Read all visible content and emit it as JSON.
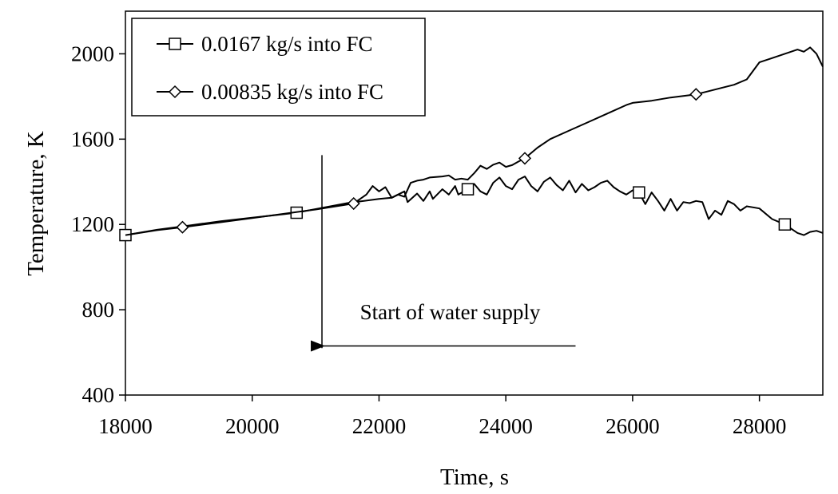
{
  "chart_data": {
    "type": "line",
    "title": "",
    "xlabel": "Time, s",
    "ylabel": "Temperature, K",
    "xlim": [
      18000,
      29000
    ],
    "ylim": [
      400,
      2200
    ],
    "xticks": [
      18000,
      20000,
      22000,
      24000,
      26000,
      28000
    ],
    "yticks": [
      400,
      800,
      1200,
      1600,
      2000
    ],
    "xtick_labels": [
      "18000",
      "20000",
      "22000",
      "24000",
      "26000",
      "28000"
    ],
    "ytick_labels": [
      "400",
      "800",
      "1200",
      "1600",
      "2000"
    ],
    "grid": false,
    "legend_position": "top-left",
    "series": [
      {
        "name": "0.0167 kg/s into FC",
        "marker": "square",
        "color": "#000000",
        "x": [
          18000,
          18500,
          19000,
          19500,
          20000,
          20500,
          20700,
          21000,
          21500,
          22000,
          22200,
          22400,
          22450,
          22600,
          22700,
          22800,
          22850,
          23000,
          23100,
          23200,
          23250,
          23400,
          23500,
          23600,
          23700,
          23800,
          23900,
          24000,
          24100,
          24200,
          24300,
          24400,
          24500,
          24600,
          24700,
          24800,
          24900,
          25000,
          25100,
          25200,
          25300,
          25400,
          25500,
          25600,
          25700,
          25800,
          25900,
          26000,
          26100,
          26200,
          26300,
          26400,
          26500,
          26600,
          26700,
          26800,
          26900,
          27000,
          27100,
          27200,
          27300,
          27400,
          27500,
          27600,
          27700,
          27800,
          27900,
          28000,
          28200,
          28400,
          28600,
          28700,
          28800,
          28900,
          29000
        ],
        "y": [
          1150,
          1175,
          1195,
          1215,
          1232,
          1248,
          1255,
          1272,
          1300,
          1320,
          1325,
          1355,
          1305,
          1345,
          1310,
          1355,
          1320,
          1365,
          1340,
          1380,
          1340,
          1365,
          1390,
          1355,
          1340,
          1395,
          1420,
          1380,
          1365,
          1410,
          1425,
          1380,
          1355,
          1400,
          1420,
          1385,
          1360,
          1405,
          1350,
          1390,
          1360,
          1375,
          1395,
          1405,
          1375,
          1355,
          1340,
          1360,
          1350,
          1295,
          1350,
          1310,
          1265,
          1320,
          1265,
          1305,
          1300,
          1310,
          1305,
          1225,
          1265,
          1245,
          1310,
          1295,
          1265,
          1285,
          1280,
          1275,
          1225,
          1200,
          1160,
          1150,
          1165,
          1170,
          1160
        ],
        "markers_at_x": [
          18000,
          20700,
          23400,
          26100,
          28400
        ]
      },
      {
        "name": "0.00835 kg/s into FC",
        "marker": "diamond",
        "color": "#000000",
        "x": [
          18000,
          18500,
          18900,
          19500,
          20000,
          20500,
          21000,
          21600,
          21800,
          21900,
          22000,
          22100,
          22200,
          22300,
          22400,
          22500,
          22600,
          22700,
          22800,
          23000,
          23100,
          23200,
          23300,
          23400,
          23500,
          23600,
          23700,
          23800,
          23900,
          24000,
          24100,
          24200,
          24300,
          24500,
          24700,
          25000,
          25300,
          25600,
          25900,
          26000,
          26300,
          26600,
          27000,
          27400,
          27600,
          27800,
          28000,
          28200,
          28400,
          28600,
          28700,
          28800,
          28900,
          29000
        ],
        "y": [
          1150,
          1173,
          1187,
          1210,
          1230,
          1250,
          1270,
          1298,
          1340,
          1380,
          1355,
          1375,
          1325,
          1340,
          1330,
          1395,
          1405,
          1410,
          1420,
          1425,
          1430,
          1410,
          1415,
          1410,
          1440,
          1475,
          1460,
          1480,
          1490,
          1470,
          1478,
          1495,
          1510,
          1560,
          1600,
          1640,
          1680,
          1720,
          1760,
          1770,
          1780,
          1795,
          1810,
          1840,
          1855,
          1880,
          1960,
          1980,
          2000,
          2020,
          2010,
          2030,
          2000,
          1940
        ],
        "markers_at_x": [
          18900,
          21600,
          24300,
          27000
        ]
      }
    ],
    "annotations": [
      {
        "text": "Start of water supply",
        "vline_x": 21100,
        "vline_y_range": [
          620,
          1525
        ],
        "arrow_from": [
          25100,
          630
        ],
        "arrow_to": [
          21100,
          630
        ],
        "text_anchor": [
          21700,
          755
        ]
      }
    ]
  }
}
